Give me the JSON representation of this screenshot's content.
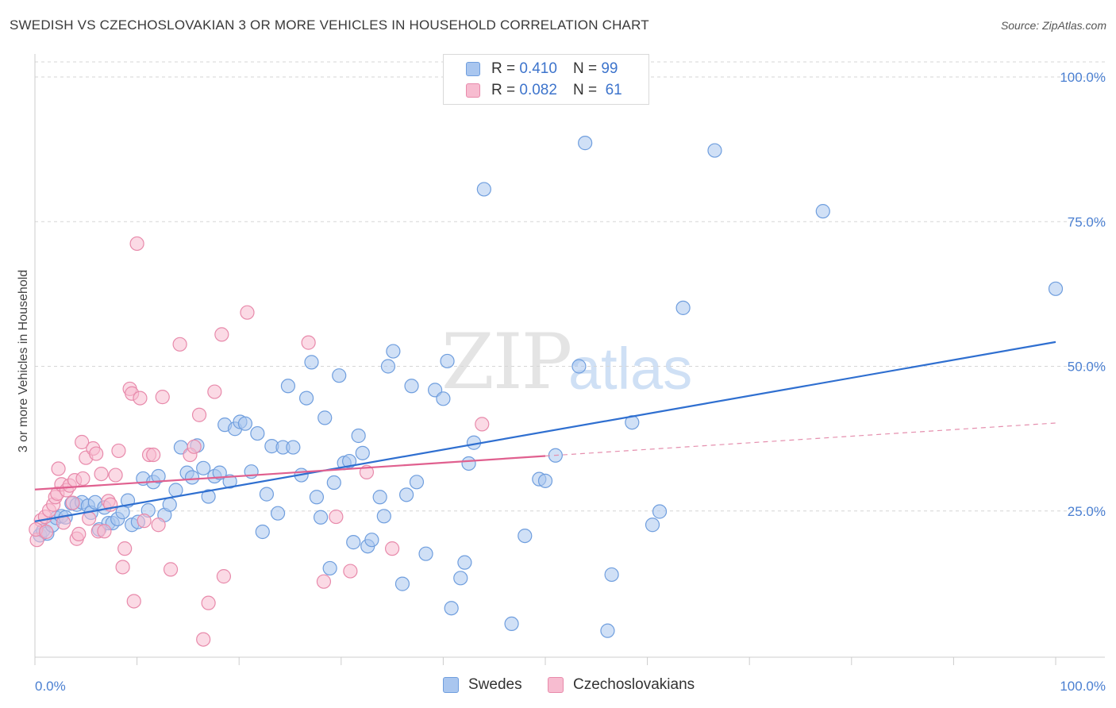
{
  "header": {
    "title": "SWEDISH VS CZECHOSLOVAKIAN 3 OR MORE VEHICLES IN HOUSEHOLD CORRELATION CHART",
    "source": "Source: ZipAtlas.com"
  },
  "watermark": {
    "zip": "ZIP",
    "atlas": "atlas"
  },
  "legend": {
    "rows": [
      {
        "r_label": "R =",
        "r_value": "0.410",
        "n_label": "N =",
        "n_value": "99",
        "color": "#a9c6ef",
        "border": "#6f9ede"
      },
      {
        "r_label": "R =",
        "r_value": "0.082",
        "n_label": "N =",
        "n_value": "61",
        "color": "#f7bcd0",
        "border": "#e88aab"
      }
    ]
  },
  "bottom_legend": [
    {
      "label": "Swedes",
      "color": "#a9c6ef",
      "border": "#6f9ede"
    },
    {
      "label": "Czechoslovakians",
      "color": "#f7bcd0",
      "border": "#e88aab"
    }
  ],
  "chart_data": {
    "type": "scatter",
    "title": "SWEDISH VS CZECHOSLOVAKIAN 3 OR MORE VEHICLES IN HOUSEHOLD CORRELATION CHART",
    "xlabel": "",
    "ylabel": "3 or more Vehicles in Household",
    "xlim": [
      0,
      100
    ],
    "ylim": [
      0,
      105
    ],
    "x_tick_labels": [
      "0.0%",
      "100.0%"
    ],
    "y_ticks": [
      25,
      50,
      75,
      100
    ],
    "y_tick_labels": [
      "25.0%",
      "50.0%",
      "75.0%",
      "100.0%"
    ],
    "grid": true,
    "legend_position": "top-center",
    "series": [
      {
        "name": "Swedes",
        "color": "#6f9ede",
        "fill": "#a9c6ef",
        "trend": {
          "x": [
            0,
            100
          ],
          "y": [
            23.2,
            54.2
          ],
          "color": "#2f6fd0"
        },
        "points": [
          [
            0.5,
            20.8
          ],
          [
            0.8,
            21.6
          ],
          [
            1.2,
            21.1
          ],
          [
            1.7,
            22.5
          ],
          [
            2.1,
            23.8
          ],
          [
            2.6,
            24.1
          ],
          [
            3.0,
            23.9
          ],
          [
            3.6,
            26.3
          ],
          [
            4.1,
            26.1
          ],
          [
            4.6,
            26.5
          ],
          [
            5.2,
            25.9
          ],
          [
            5.5,
            24.7
          ],
          [
            5.9,
            26.5
          ],
          [
            6.3,
            21.8
          ],
          [
            6.8,
            25.6
          ],
          [
            7.2,
            22.9
          ],
          [
            7.6,
            22.9
          ],
          [
            8.1,
            23.6
          ],
          [
            8.6,
            24.8
          ],
          [
            9.1,
            26.8
          ],
          [
            9.5,
            22.6
          ],
          [
            10.1,
            23.1
          ],
          [
            10.6,
            30.6
          ],
          [
            11.1,
            25.1
          ],
          [
            11.6,
            30.0
          ],
          [
            12.1,
            31.0
          ],
          [
            12.7,
            24.3
          ],
          [
            13.2,
            26.1
          ],
          [
            13.8,
            28.6
          ],
          [
            14.3,
            36.0
          ],
          [
            14.9,
            31.6
          ],
          [
            15.4,
            30.8
          ],
          [
            15.9,
            36.3
          ],
          [
            16.5,
            32.4
          ],
          [
            17.0,
            27.5
          ],
          [
            17.6,
            31.0
          ],
          [
            18.1,
            31.6
          ],
          [
            18.6,
            39.9
          ],
          [
            19.1,
            30.1
          ],
          [
            19.6,
            39.2
          ],
          [
            20.1,
            40.4
          ],
          [
            20.6,
            40.1
          ],
          [
            21.2,
            31.8
          ],
          [
            21.8,
            38.4
          ],
          [
            22.3,
            21.4
          ],
          [
            22.7,
            27.9
          ],
          [
            23.2,
            36.2
          ],
          [
            23.8,
            24.6
          ],
          [
            24.3,
            36.0
          ],
          [
            24.8,
            46.6
          ],
          [
            25.3,
            36.0
          ],
          [
            26.1,
            31.2
          ],
          [
            26.6,
            44.5
          ],
          [
            27.1,
            50.7
          ],
          [
            27.6,
            27.4
          ],
          [
            28.0,
            23.9
          ],
          [
            28.4,
            41.1
          ],
          [
            28.9,
            15.1
          ],
          [
            29.3,
            29.9
          ],
          [
            29.8,
            48.4
          ],
          [
            30.3,
            33.3
          ],
          [
            30.8,
            33.6
          ],
          [
            31.2,
            19.6
          ],
          [
            31.7,
            38.0
          ],
          [
            32.1,
            35.0
          ],
          [
            32.6,
            18.9
          ],
          [
            33.0,
            20.0
          ],
          [
            33.8,
            27.4
          ],
          [
            34.2,
            24.1
          ],
          [
            34.6,
            50.0
          ],
          [
            35.1,
            52.6
          ],
          [
            36.0,
            12.4
          ],
          [
            36.4,
            27.8
          ],
          [
            36.9,
            46.6
          ],
          [
            37.4,
            30.0
          ],
          [
            38.3,
            17.6
          ],
          [
            39.2,
            45.9
          ],
          [
            40.0,
            44.4
          ],
          [
            40.4,
            50.9
          ],
          [
            40.8,
            8.2
          ],
          [
            41.7,
            13.4
          ],
          [
            42.1,
            16.1
          ],
          [
            42.5,
            33.2
          ],
          [
            43.0,
            36.8
          ],
          [
            44.0,
            80.6
          ],
          [
            46.7,
            5.5
          ],
          [
            48.0,
            20.7
          ],
          [
            49.4,
            30.5
          ],
          [
            50.0,
            30.2
          ],
          [
            51.0,
            34.6
          ],
          [
            53.3,
            50.0
          ],
          [
            53.9,
            88.6
          ],
          [
            56.1,
            4.3
          ],
          [
            56.5,
            14.0
          ],
          [
            58.5,
            40.3
          ],
          [
            60.5,
            22.6
          ],
          [
            61.2,
            24.9
          ],
          [
            63.5,
            60.1
          ],
          [
            66.6,
            87.3
          ],
          [
            77.2,
            76.8
          ],
          [
            100.0,
            63.4
          ]
        ]
      },
      {
        "name": "Czechoslovakians",
        "color": "#e88aab",
        "fill": "#f7bcd0",
        "trend": {
          "x": [
            0,
            50
          ],
          "y": [
            28.7,
            34.5
          ],
          "color": "#e0608f"
        },
        "trend_dashed": {
          "x": [
            50,
            100
          ],
          "y": [
            34.5,
            40.2
          ],
          "color": "#e58fae"
        },
        "points": [
          [
            0.2,
            20.0
          ],
          [
            0.6,
            23.4
          ],
          [
            1.0,
            24.0
          ],
          [
            1.4,
            25.1
          ],
          [
            1.8,
            26.1
          ],
          [
            2.0,
            27.4
          ],
          [
            2.2,
            28.0
          ],
          [
            2.3,
            32.3
          ],
          [
            2.6,
            29.6
          ],
          [
            2.8,
            23.0
          ],
          [
            3.1,
            28.6
          ],
          [
            3.4,
            29.4
          ],
          [
            3.7,
            26.4
          ],
          [
            3.9,
            30.3
          ],
          [
            4.1,
            20.2
          ],
          [
            4.3,
            21.0
          ],
          [
            4.6,
            36.9
          ],
          [
            5.0,
            34.2
          ],
          [
            5.3,
            23.7
          ],
          [
            5.7,
            35.8
          ],
          [
            6.0,
            34.9
          ],
          [
            6.2,
            21.5
          ],
          [
            6.5,
            31.4
          ],
          [
            6.8,
            21.5
          ],
          [
            7.2,
            26.7
          ],
          [
            7.4,
            26.1
          ],
          [
            7.9,
            31.2
          ],
          [
            8.2,
            35.4
          ],
          [
            8.6,
            15.3
          ],
          [
            8.8,
            18.5
          ],
          [
            9.3,
            46.1
          ],
          [
            9.5,
            45.3
          ],
          [
            9.7,
            9.4
          ],
          [
            10.0,
            71.2
          ],
          [
            10.3,
            44.5
          ],
          [
            10.7,
            23.3
          ],
          [
            11.2,
            34.7
          ],
          [
            11.6,
            34.7
          ],
          [
            12.1,
            22.6
          ],
          [
            12.5,
            44.7
          ],
          [
            13.3,
            14.9
          ],
          [
            14.2,
            53.8
          ],
          [
            15.2,
            34.7
          ],
          [
            15.6,
            36.1
          ],
          [
            16.1,
            41.6
          ],
          [
            16.5,
            2.8
          ],
          [
            17.0,
            9.1
          ],
          [
            17.6,
            45.6
          ],
          [
            18.3,
            55.5
          ],
          [
            18.5,
            13.7
          ],
          [
            20.8,
            59.3
          ],
          [
            26.8,
            54.1
          ],
          [
            28.3,
            12.8
          ],
          [
            29.5,
            24.0
          ],
          [
            30.9,
            14.6
          ],
          [
            32.5,
            31.7
          ],
          [
            35.0,
            18.5
          ],
          [
            43.8,
            40.0
          ],
          [
            0.1,
            21.8
          ],
          [
            1.1,
            21.4
          ],
          [
            4.7,
            30.6
          ]
        ]
      }
    ]
  }
}
